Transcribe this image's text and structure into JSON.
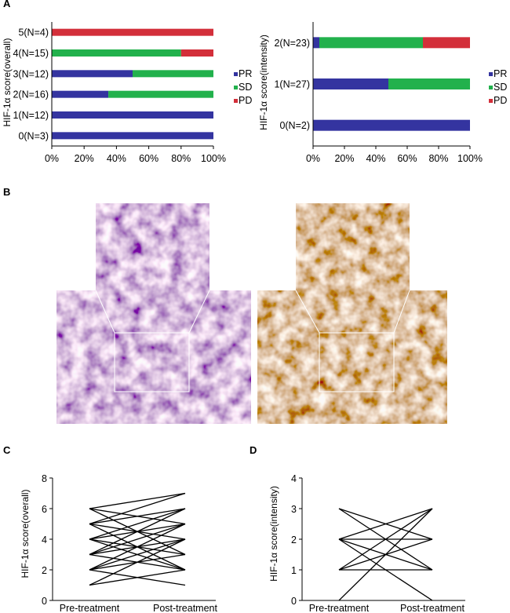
{
  "panel_labels": [
    "A",
    "B",
    "C",
    "D"
  ],
  "colors": {
    "PR": "#3434a0",
    "SD": "#22b14c",
    "PD": "#d32f3a",
    "line": "#000000"
  },
  "chart_data": [
    {
      "id": "A-left",
      "type": "bar",
      "orientation": "horizontal",
      "stacked": true,
      "ylabel": "HIF-1α score(overall)",
      "categories": [
        "0(N=3)",
        "1(N=12)",
        "2(N=16)",
        "3(N=12)",
        "4(N=15)",
        "5(N=4)"
      ],
      "series": [
        {
          "name": "PR",
          "values": [
            100,
            100,
            35,
            50,
            0,
            0
          ]
        },
        {
          "name": "SD",
          "values": [
            0,
            0,
            65,
            50,
            80,
            0
          ]
        },
        {
          "name": "PD",
          "values": [
            0,
            0,
            0,
            0,
            20,
            100
          ]
        }
      ],
      "xticks": [
        "0%",
        "20%",
        "40%",
        "60%",
        "80%",
        "100%"
      ],
      "xlim": [
        0,
        100
      ],
      "legend": [
        "PR",
        "SD",
        "PD"
      ],
      "legend_position": "right"
    },
    {
      "id": "A-right",
      "type": "bar",
      "orientation": "horizontal",
      "stacked": true,
      "ylabel": "HIF-1α score(intensity)",
      "categories": [
        "0(N=2)",
        "1(N=27)",
        "2(N=23)"
      ],
      "series": [
        {
          "name": "PR",
          "values": [
            100,
            48,
            4
          ]
        },
        {
          "name": "SD",
          "values": [
            0,
            52,
            66
          ]
        },
        {
          "name": "PD",
          "values": [
            0,
            0,
            30
          ]
        }
      ],
      "xticks": [
        "0%",
        "20%",
        "40%",
        "60%",
        "80%",
        "100%"
      ],
      "xlim": [
        0,
        100
      ],
      "legend": [
        "PR",
        "SD",
        "PD"
      ],
      "legend_position": "right"
    },
    {
      "id": "C",
      "type": "line",
      "kind": "paired",
      "ylabel": "HIF-1α score(overall)",
      "categories": [
        "Pre-treatment",
        "Post-treatment"
      ],
      "ylim": [
        0,
        8
      ],
      "yticks": [
        0,
        2,
        4,
        6,
        8
      ],
      "pairs": [
        [
          6,
          7
        ],
        [
          6,
          5
        ],
        [
          6,
          3
        ],
        [
          5,
          6
        ],
        [
          5,
          4
        ],
        [
          5,
          7
        ],
        [
          5,
          2
        ],
        [
          4,
          6
        ],
        [
          4,
          5
        ],
        [
          4,
          3
        ],
        [
          4,
          2
        ],
        [
          3,
          4
        ],
        [
          3,
          5
        ],
        [
          3,
          6
        ],
        [
          3,
          2
        ],
        [
          2,
          4
        ],
        [
          2,
          3
        ],
        [
          2,
          5
        ],
        [
          2,
          1
        ],
        [
          1,
          2
        ],
        [
          1,
          4
        ]
      ]
    },
    {
      "id": "D",
      "type": "line",
      "kind": "paired",
      "ylabel": "HIF-1α score(intensity)",
      "categories": [
        "Pre-treatment",
        "Post-treatment"
      ],
      "ylim": [
        0,
        4
      ],
      "yticks": [
        0,
        1,
        2,
        3,
        4
      ],
      "pairs": [
        [
          3,
          2
        ],
        [
          3,
          1
        ],
        [
          2,
          3
        ],
        [
          2,
          2
        ],
        [
          2,
          1
        ],
        [
          1,
          3
        ],
        [
          1,
          2
        ],
        [
          1,
          1
        ],
        [
          2,
          0
        ],
        [
          0,
          3
        ]
      ]
    }
  ],
  "micrographs": [
    {
      "name": "micrograph-low-hif",
      "palette": "purple"
    },
    {
      "name": "micrograph-high-hif",
      "palette": "brown"
    }
  ]
}
